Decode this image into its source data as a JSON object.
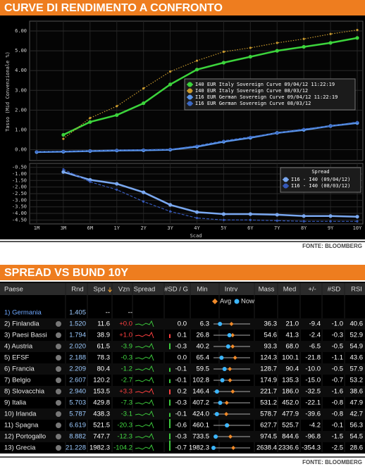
{
  "header": {
    "title": "CURVE DI RENDIMENTO A CONFRONTO",
    "source": "FONTE: BLOOMBERG"
  },
  "chart_data": [
    {
      "type": "line",
      "y_label": "Tasso (Mid Convenzionale %)",
      "ylim": [
        -0.55,
        6.5
      ],
      "yticks": [
        {
          "value": 0,
          "label": "0.00"
        },
        {
          "value": 1,
          "label": "1.00"
        },
        {
          "value": 2,
          "label": "2.00"
        },
        {
          "value": 3,
          "label": "3.00"
        },
        {
          "value": 4,
          "label": "4.00"
        },
        {
          "value": 5,
          "label": "5.00"
        },
        {
          "value": 6,
          "label": "6.00"
        }
      ],
      "grid": true,
      "series": [
        {
          "name": "I40 EUR Italy Sovereign Curve 09/04/12 11:22:19",
          "color": "#3cd43c",
          "line_style": "solid",
          "values": [
            null,
            0.75,
            1.4,
            1.75,
            2.35,
            3.3,
            4.05,
            4.4,
            4.7,
            5.0,
            5.2,
            5.4,
            5.65
          ]
        },
        {
          "name": "I40 EUR Italy Sovereign Curve 08/03/12",
          "color": "#c99a2e",
          "line_style": "dotted",
          "values": [
            null,
            0.55,
            1.6,
            2.2,
            3.1,
            3.95,
            4.5,
            4.95,
            5.15,
            5.4,
            5.6,
            5.85,
            6.05
          ]
        },
        {
          "name": "I16 EUR German Sovereign Curve 09/04/12 11:22:19",
          "color": "#5b95e8",
          "line_style": "solid",
          "values": [
            -0.12,
            -0.1,
            -0.07,
            -0.04,
            -0.03,
            0.0,
            0.15,
            0.4,
            0.6,
            0.85,
            1.0,
            1.2,
            1.35
          ]
        },
        {
          "name": "I16 EUR German Sovereign Curve 08/03/12",
          "color": "#3b68c4",
          "line_style": "dashed",
          "values": [
            -0.1,
            -0.08,
            -0.05,
            -0.02,
            0.0,
            0.02,
            0.2,
            0.45,
            0.65,
            0.85,
            1.05,
            1.2,
            1.4
          ]
        }
      ]
    },
    {
      "type": "line",
      "legend_title": "Spread",
      "x_label": "Scad",
      "categories": [
        "1M",
        "3M",
        "6M",
        "1Y",
        "2Y",
        "3Y",
        "4Y",
        "5Y",
        "6Y",
        "7Y",
        "8Y",
        "9Y",
        "10Y"
      ],
      "ylim": [
        -4.8,
        -0.2
      ],
      "yticks": [
        {
          "value": -0.5,
          "label": "-0.50"
        },
        {
          "value": -1,
          "label": "-1.00"
        },
        {
          "value": -1.5,
          "label": "-1.50"
        },
        {
          "value": -2,
          "label": "-2.00"
        },
        {
          "value": -2.5,
          "label": "-2.50"
        },
        {
          "value": -3,
          "label": "-3.00"
        },
        {
          "value": -3.5,
          "label": "-3.50"
        },
        {
          "value": -4,
          "label": "-4.00"
        },
        {
          "value": -4.5,
          "label": "-4.50"
        }
      ],
      "grid": true,
      "series": [
        {
          "name": "I16 - I40 (09/04/12)",
          "color": "#7aa8f0",
          "line_style": "solid",
          "values": [
            null,
            -0.85,
            -1.45,
            -1.75,
            -2.4,
            -3.35,
            -3.9,
            -4.05,
            -4.05,
            -4.1,
            -4.2,
            -4.2,
            -4.25
          ]
        },
        {
          "name": "I16 - I40 (08/03/12)",
          "color": "#3558b8",
          "line_style": "dashed",
          "values": [
            null,
            -0.65,
            -1.6,
            -2.2,
            -3.1,
            -3.85,
            -4.35,
            -4.5,
            -4.5,
            -4.55,
            -4.6,
            -4.6,
            -4.6
          ]
        }
      ]
    }
  ],
  "table_section": {
    "title": "SPREAD VS BUND 10Y",
    "source": "FONTE: BLOOMBERG",
    "legend": [
      "Avg",
      "Now"
    ],
    "columns": [
      "Paese",
      "Rnd",
      "Spd",
      "Vzn",
      "Spread",
      "#SD / G",
      "Min",
      "Intrv",
      "Mass",
      "Med",
      "+/-",
      "#SD",
      "RSI"
    ],
    "rows": [
      [
        "1) Germania",
        "1.405",
        "--",
        "--"
      ],
      [
        "2) Finlandia",
        "1.520",
        "11.6",
        "+0.0",
        "0.0",
        "6.3",
        "36.3",
        "21.0",
        "-9.4",
        "-1.0",
        "40.6"
      ],
      [
        "3) Paesi Bassi",
        "1.794",
        "38.9",
        "+1.0",
        "0.1",
        "26.8",
        "54.6",
        "41.3",
        "-2.4",
        "-0.3",
        "52.9"
      ],
      [
        "4) Austria",
        "2.020",
        "61.5",
        "-3.9",
        "-0.3",
        "40.2",
        "93.3",
        "68.0",
        "-6.5",
        "-0.5",
        "54.9"
      ],
      [
        "5) EFSF",
        "2.188",
        "78.3",
        "-0.3",
        "0.0",
        "65.4",
        "124.3",
        "100.1",
        "-21.8",
        "-1.1",
        "43.6"
      ],
      [
        "6) Francia",
        "2.209",
        "80.4",
        "-1.2",
        "-0.1",
        "59.5",
        "128.7",
        "90.4",
        "-10.0",
        "-0.5",
        "57.9"
      ],
      [
        "7) Belgio",
        "2.607",
        "120.2",
        "-2.7",
        "-0.1",
        "102.8",
        "174.9",
        "135.3",
        "-15.0",
        "-0.7",
        "53.2"
      ],
      [
        "8) Slovacchia",
        "2.940",
        "153.5",
        "+3.3",
        "0.2",
        "146.4",
        "221.7",
        "186.0",
        "-32.5",
        "-1.6",
        "38.6"
      ],
      [
        "9) Italia",
        "5.703",
        "429.8",
        "-7.3",
        "-0.3",
        "407.2",
        "531.2",
        "452.0",
        "-22.1",
        "-0.8",
        "47.9"
      ],
      [
        "10) Irlanda",
        "5.787",
        "438.3",
        "-3.1",
        "-0.1",
        "424.0",
        "578.7",
        "477.9",
        "-39.6",
        "-0.8",
        "42.7"
      ],
      [
        "11) Spagna",
        "6.619",
        "521.5",
        "-20.3",
        "-0.6",
        "460.1",
        "627.7",
        "525.7",
        "-4.2",
        "-0.1",
        "56.3"
      ],
      [
        "12) Portogallo",
        "8.882",
        "747.7",
        "-12.3",
        "-0.3",
        "733.5",
        "974.5",
        "844.6",
        "-96.8",
        "-1.5",
        "54.5"
      ],
      [
        "13) Grecia",
        "21.228",
        "1982.3",
        "-104.2",
        "-0.7",
        "1982.3",
        "2638.4",
        "2336.6",
        "-354.3",
        "-2.5",
        "28.6"
      ]
    ]
  }
}
